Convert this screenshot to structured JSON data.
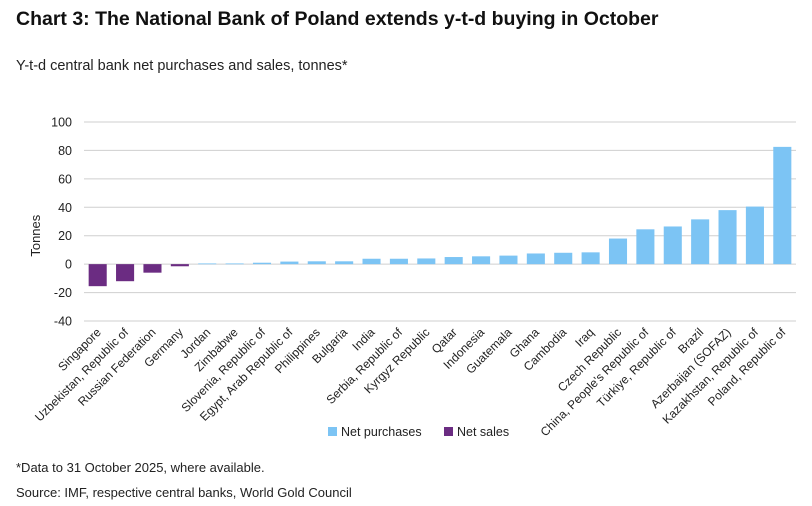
{
  "header": {
    "title": "Chart 3: The National Bank of Poland extends y-t-d buying in October",
    "subtitle": "Y-t-d central bank net purchases and sales, tonnes*"
  },
  "footer": {
    "note": "*Data to 31 October 2025, where available.",
    "source": "Source: IMF, respective central banks, World Gold Council"
  },
  "colors": {
    "net_purchases": "#7cc4f4",
    "net_sales": "#6b2c82",
    "grid": "#cfcfcf"
  },
  "chart_data": {
    "type": "bar",
    "title": "",
    "xlabel": "",
    "ylabel": "Tonnes",
    "ylim": [
      -40,
      100
    ],
    "yticks": [
      100,
      80,
      60,
      40,
      20,
      0,
      -20,
      -40
    ],
    "grid": true,
    "legend_position": "bottom-center",
    "legend": [
      "Net purchases",
      "Net sales"
    ],
    "categories": [
      "Singapore",
      "Uzbekistan, Republic of",
      "Russian Federation",
      "Germany",
      "Jordan",
      "Zimbabwe",
      "Slovenia, Republic of",
      "Egypt, Arab Republic of",
      "Philippines",
      "Bulgaria",
      "India",
      "Serbia, Republic of",
      "Kyrgyz Republic",
      "Qatar",
      "Indonesia",
      "Guatemala",
      "Ghana",
      "Cambodia",
      "Iraq",
      "Czech Republic",
      "China, People's Republic of",
      "Türkiye, Republic of",
      "Brazil",
      "Azerbaijan (SOFAZ)",
      "Kazakhstan, Republic of",
      "Poland, Republic of"
    ],
    "values": [
      -15.5,
      -12,
      -6,
      -1.5,
      0.5,
      0.5,
      1,
      1.8,
      2,
      2,
      3.8,
      3.8,
      4,
      5,
      5.5,
      6,
      7.5,
      8,
      8.3,
      18,
      24.5,
      26.5,
      31.5,
      38,
      40.5,
      82.5
    ]
  }
}
